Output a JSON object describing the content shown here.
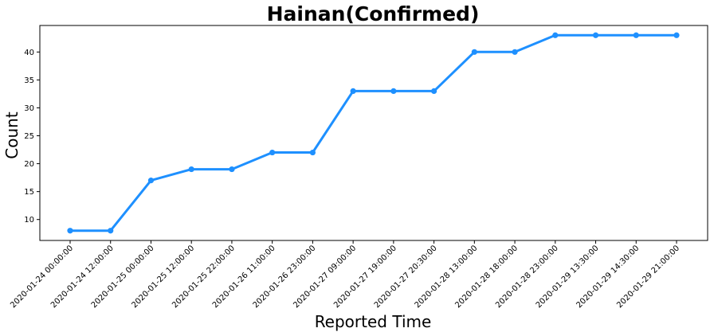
{
  "chart_data": {
    "type": "line",
    "title": "Hainan(Confirmed)",
    "xlabel": "Reported Time",
    "ylabel": "Count",
    "categories": [
      "2020-01-24 00:00:00",
      "2020-01-24 12:00:00",
      "2020-01-25 00:00:00",
      "2020-01-25 12:00:00",
      "2020-01-25 22:00:00",
      "2020-01-26 11:00:00",
      "2020-01-26 23:00:00",
      "2020-01-27 09:00:00",
      "2020-01-27 19:00:00",
      "2020-01-27 20:30:00",
      "2020-01-28 13:00:00",
      "2020-01-28 18:00:00",
      "2020-01-28 23:00:00",
      "2020-01-29 13:30:00",
      "2020-01-29 14:30:00",
      "2020-01-29 21:00:00"
    ],
    "series": [
      {
        "values": [
          8,
          8,
          17,
          19,
          19,
          22,
          22,
          33,
          33,
          33,
          40,
          40,
          43,
          43,
          43,
          43
        ]
      }
    ],
    "ylim": [
      6.25,
      44.75
    ],
    "yticks": [
      10,
      15,
      20,
      25,
      30,
      35,
      40
    ],
    "grid": false,
    "color": "#1e90ff"
  }
}
